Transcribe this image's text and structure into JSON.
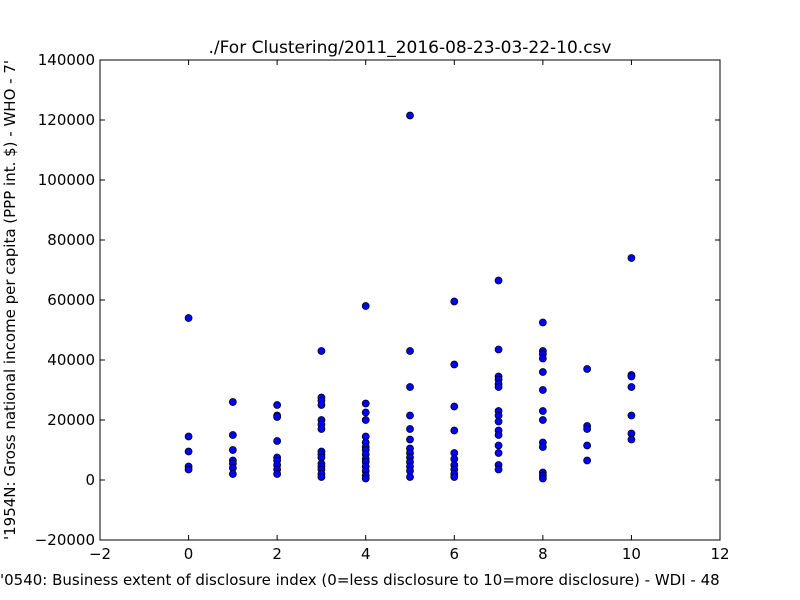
{
  "chart_data": {
    "type": "scatter",
    "title": "./For Clustering/2011_2016-08-23-03-22-10.csv",
    "xlabel": "'0540: Business extent of disclosure index  (0=less disclosure to 10=more disclosure) - WDI - 48",
    "ylabel": "'1954N: Gross national income per capita (PPP int. $) - WHO - 7'",
    "xlim": [
      -2,
      12
    ],
    "ylim": [
      -20000,
      140000
    ],
    "x_ticks": [
      "−2",
      "0",
      "2",
      "4",
      "6",
      "8",
      "10",
      "12"
    ],
    "y_ticks": [
      "−20000",
      "0",
      "20000",
      "40000",
      "60000",
      "80000",
      "100000",
      "120000",
      "140000"
    ],
    "x_tick_values": [
      -2,
      0,
      2,
      4,
      6,
      8,
      10,
      12
    ],
    "y_tick_values": [
      -20000,
      0,
      20000,
      40000,
      60000,
      80000,
      100000,
      120000,
      140000
    ],
    "grid": false,
    "marker_color": "#0000ff",
    "points": [
      [
        0,
        54000
      ],
      [
        0,
        14500
      ],
      [
        0,
        9500
      ],
      [
        0,
        4500
      ],
      [
        0,
        3500
      ],
      [
        1,
        26000
      ],
      [
        1,
        15000
      ],
      [
        1,
        10000
      ],
      [
        1,
        6500
      ],
      [
        1,
        5500
      ],
      [
        1,
        4000
      ],
      [
        1,
        2000
      ],
      [
        2,
        25000
      ],
      [
        2,
        21500
      ],
      [
        2,
        21000
      ],
      [
        2,
        13000
      ],
      [
        2,
        7500
      ],
      [
        2,
        6500
      ],
      [
        2,
        5000
      ],
      [
        2,
        3500
      ],
      [
        2,
        2000
      ],
      [
        3,
        43000
      ],
      [
        3,
        27500
      ],
      [
        3,
        26500
      ],
      [
        3,
        25000
      ],
      [
        3,
        20000
      ],
      [
        3,
        18500
      ],
      [
        3,
        17000
      ],
      [
        3,
        9500
      ],
      [
        3,
        8500
      ],
      [
        3,
        7500
      ],
      [
        3,
        5500
      ],
      [
        3,
        4500
      ],
      [
        3,
        3500
      ],
      [
        3,
        2000
      ],
      [
        3,
        1000
      ],
      [
        4,
        58000
      ],
      [
        4,
        25500
      ],
      [
        4,
        22500
      ],
      [
        4,
        20000
      ],
      [
        4,
        14500
      ],
      [
        4,
        12500
      ],
      [
        4,
        11000
      ],
      [
        4,
        10000
      ],
      [
        4,
        8500
      ],
      [
        4,
        7000
      ],
      [
        4,
        6000
      ],
      [
        4,
        4500
      ],
      [
        4,
        3000
      ],
      [
        4,
        1500
      ],
      [
        4,
        500
      ],
      [
        5,
        121500
      ],
      [
        5,
        43000
      ],
      [
        5,
        31000
      ],
      [
        5,
        21500
      ],
      [
        5,
        17000
      ],
      [
        5,
        13500
      ],
      [
        5,
        10500
      ],
      [
        5,
        9000
      ],
      [
        5,
        7500
      ],
      [
        5,
        6000
      ],
      [
        5,
        4500
      ],
      [
        5,
        3000
      ],
      [
        5,
        1000
      ],
      [
        6,
        59500
      ],
      [
        6,
        38500
      ],
      [
        6,
        24500
      ],
      [
        6,
        16500
      ],
      [
        6,
        9000
      ],
      [
        6,
        7000
      ],
      [
        6,
        5000
      ],
      [
        6,
        3500
      ],
      [
        6,
        2000
      ],
      [
        6,
        1000
      ],
      [
        7,
        66500
      ],
      [
        7,
        43500
      ],
      [
        7,
        34500
      ],
      [
        7,
        33500
      ],
      [
        7,
        32000
      ],
      [
        7,
        31000
      ],
      [
        7,
        23000
      ],
      [
        7,
        21500
      ],
      [
        7,
        19500
      ],
      [
        7,
        16500
      ],
      [
        7,
        15000
      ],
      [
        7,
        11500
      ],
      [
        7,
        9000
      ],
      [
        7,
        5000
      ],
      [
        7,
        3500
      ],
      [
        8,
        52500
      ],
      [
        8,
        43000
      ],
      [
        8,
        42000
      ],
      [
        8,
        40500
      ],
      [
        8,
        36000
      ],
      [
        8,
        30000
      ],
      [
        8,
        23000
      ],
      [
        8,
        20000
      ],
      [
        8,
        12500
      ],
      [
        8,
        11000
      ],
      [
        8,
        2500
      ],
      [
        8,
        1500
      ],
      [
        8,
        500
      ],
      [
        9,
        37000
      ],
      [
        9,
        18000
      ],
      [
        9,
        17000
      ],
      [
        9,
        11500
      ],
      [
        9,
        6500
      ],
      [
        10,
        74000
      ],
      [
        10,
        35000
      ],
      [
        10,
        34500
      ],
      [
        10,
        31000
      ],
      [
        10,
        21500
      ],
      [
        10,
        15500
      ],
      [
        10,
        13500
      ]
    ]
  }
}
